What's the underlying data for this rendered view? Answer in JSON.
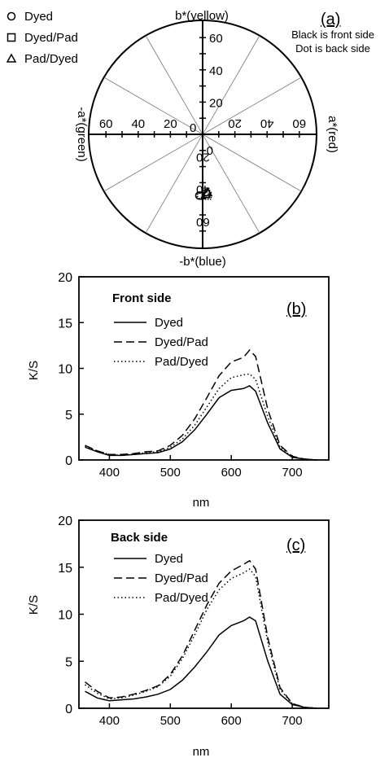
{
  "chart_data": [
    {
      "type": "scatter",
      "panel_label": "(a)",
      "note_lines": [
        "Black is front side",
        "Dot is back side"
      ],
      "axis_labels": {
        "top": "b*(yellow)",
        "bottom": "-b*(blue)",
        "right": "a*(red)",
        "left": "-a*(green)"
      },
      "radial_ticks": [
        "20",
        "40",
        "60"
      ],
      "center_tick": "0",
      "rlim": [
        0,
        70
      ],
      "legend_position": "top-left",
      "series": [
        {
          "name": "Dyed",
          "marker": "circle",
          "points": [
            {
              "a": -2,
              "b": -38,
              "side": "front"
            },
            {
              "a": -1,
              "b": -38,
              "side": "back"
            }
          ]
        },
        {
          "name": "Dyed/Pad",
          "marker": "square",
          "points": [
            {
              "a": 2,
              "b": -37,
              "side": "front"
            },
            {
              "a": 3,
              "b": -38,
              "side": "back"
            }
          ]
        },
        {
          "name": "Pad/Dyed",
          "marker": "triangle",
          "points": [
            {
              "a": 3,
              "b": -36,
              "side": "front"
            },
            {
              "a": 2,
              "b": -37,
              "side": "back"
            }
          ]
        }
      ]
    },
    {
      "type": "line",
      "panel_label": "(b)",
      "subtitle": "Front side",
      "xlabel": "nm",
      "ylabel": "K/S",
      "xlim": [
        350,
        760
      ],
      "ylim": [
        0,
        20
      ],
      "xticks": [
        "400",
        "500",
        "600",
        "700"
      ],
      "yticks": [
        "0",
        "5",
        "10",
        "15",
        "20"
      ],
      "x": [
        360,
        380,
        400,
        420,
        440,
        460,
        480,
        500,
        520,
        540,
        560,
        580,
        600,
        620,
        630,
        640,
        660,
        680,
        700,
        720,
        740
      ],
      "series": [
        {
          "name": "Dyed",
          "style": "solid",
          "values": [
            1.4,
            0.9,
            0.5,
            0.5,
            0.6,
            0.7,
            0.8,
            1.2,
            2.0,
            3.3,
            5.0,
            6.8,
            7.6,
            7.8,
            8.1,
            7.5,
            4.0,
            1.2,
            0.3,
            0.1,
            0.0
          ]
        },
        {
          "name": "Dyed/Pad",
          "style": "dashed",
          "values": [
            1.6,
            1.0,
            0.6,
            0.6,
            0.7,
            0.9,
            1.0,
            1.6,
            2.7,
            4.5,
            6.8,
            9.2,
            10.7,
            11.2,
            12.0,
            11.3,
            5.5,
            1.6,
            0.4,
            0.1,
            0.0
          ]
        },
        {
          "name": "Pad/Dyed",
          "style": "dotted",
          "values": [
            1.5,
            1.0,
            0.6,
            0.5,
            0.6,
            0.8,
            0.9,
            1.4,
            2.3,
            3.8,
            5.8,
            7.8,
            9.0,
            9.3,
            9.4,
            8.8,
            4.7,
            1.4,
            0.3,
            0.1,
            0.0
          ]
        }
      ]
    },
    {
      "type": "line",
      "panel_label": "(c)",
      "subtitle": "Back side",
      "xlabel": "nm",
      "ylabel": "K/S",
      "xlim": [
        350,
        760
      ],
      "ylim": [
        0,
        20
      ],
      "xticks": [
        "400",
        "500",
        "600",
        "700"
      ],
      "yticks": [
        "0",
        "5",
        "10",
        "15",
        "20"
      ],
      "x": [
        360,
        380,
        400,
        420,
        440,
        460,
        480,
        500,
        520,
        540,
        560,
        580,
        600,
        620,
        630,
        640,
        660,
        680,
        700,
        720,
        740
      ],
      "series": [
        {
          "name": "Dyed",
          "style": "solid",
          "values": [
            1.8,
            1.1,
            0.8,
            0.9,
            1.0,
            1.2,
            1.5,
            2.0,
            3.0,
            4.4,
            6.0,
            7.8,
            8.8,
            9.3,
            9.7,
            9.3,
            5.0,
            1.5,
            0.4,
            0.1,
            0.0
          ]
        },
        {
          "name": "Dyed/Pad",
          "style": "dashed",
          "values": [
            2.8,
            1.8,
            1.1,
            1.2,
            1.5,
            1.9,
            2.4,
            3.6,
            5.6,
            8.3,
            11.0,
            13.3,
            14.6,
            15.3,
            15.7,
            14.8,
            7.5,
            2.2,
            0.5,
            0.1,
            0.0
          ]
        },
        {
          "name": "Pad/Dyed",
          "style": "dotted",
          "values": [
            2.5,
            1.6,
            1.0,
            1.1,
            1.4,
            1.8,
            2.3,
            3.4,
            5.3,
            7.8,
            10.5,
            12.6,
            13.8,
            14.4,
            14.8,
            14.0,
            7.0,
            2.0,
            0.5,
            0.1,
            0.0
          ]
        }
      ]
    }
  ]
}
